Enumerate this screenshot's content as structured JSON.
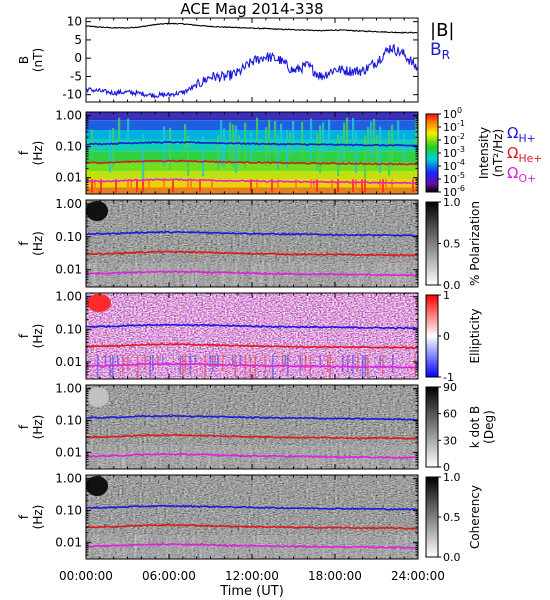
{
  "title": "ACE Mag 2014-338",
  "x_axis": {
    "label": "Time (UT)",
    "ticks": [
      "00:00:00",
      "06:00:00",
      "12:00:00",
      "18:00:00",
      "24:00:00"
    ],
    "range_hours": [
      0,
      24
    ]
  },
  "panels": [
    {
      "id": "bfield",
      "ylabel_line1": "B",
      "ylabel_line2": "(nT)",
      "yticks": [
        "10",
        "5",
        "0",
        "-5",
        "-10"
      ],
      "legend": [
        {
          "label": "|B|",
          "color": "#000000"
        },
        {
          "label": "B",
          "sub": "R",
          "color": "#1a1adc"
        }
      ]
    },
    {
      "id": "intensity",
      "ylabel_line1": "f",
      "ylabel_line2": "(Hz)",
      "yticks": [
        "1.00",
        "0.10",
        "0.01"
      ],
      "colorbar": {
        "type": "rainbow",
        "ticks": [
          {
            "base": "10",
            "exp": "0"
          },
          {
            "base": "10",
            "exp": "-1"
          },
          {
            "base": "10",
            "exp": "-2"
          },
          {
            "base": "10",
            "exp": "-3"
          },
          {
            "base": "10",
            "exp": "-4"
          },
          {
            "base": "10",
            "exp": "-5"
          },
          {
            "base": "10",
            "exp": "-6"
          }
        ],
        "label_line1": "Intensity",
        "label_line2": "(nT²/Hz)"
      },
      "legend": [
        {
          "label": "Ω",
          "sub": "H+",
          "color": "#1a1adc"
        },
        {
          "label": "Ω",
          "sub": "He+",
          "color": "#dc1a1a"
        },
        {
          "label": "Ω",
          "sub": "O+",
          "color": "#e020e0"
        }
      ]
    },
    {
      "id": "polarization",
      "ylabel_line1": "f",
      "ylabel_line2": "(Hz)",
      "yticks": [
        "1.00",
        "0.10",
        "0.01"
      ],
      "colorbar": {
        "type": "gray",
        "ticks": [
          {
            "base": "1.0"
          },
          {
            "base": "0.5"
          },
          {
            "base": "0.0"
          }
        ],
        "label_line1": "% Polarization"
      }
    },
    {
      "id": "ellipticity",
      "ylabel_line1": "f",
      "ylabel_line2": "(Hz)",
      "yticks": [
        "1.00",
        "0.10",
        "0.01"
      ],
      "colorbar": {
        "type": "bwr",
        "ticks": [
          {
            "base": "1"
          },
          {
            "base": "0"
          },
          {
            "base": "-1"
          }
        ],
        "label_line1": "Ellipticity"
      }
    },
    {
      "id": "kdotb",
      "ylabel_line1": "f",
      "ylabel_line2": "(Hz)",
      "yticks": [
        "1.00",
        "0.10",
        "0.01"
      ],
      "colorbar": {
        "type": "gray",
        "ticks": [
          {
            "base": "90"
          },
          {
            "base": "60"
          },
          {
            "base": "30"
          },
          {
            "base": "0"
          }
        ],
        "label_line1": "k dot B",
        "label_line2": "(Deg)"
      }
    },
    {
      "id": "coherency",
      "ylabel_line1": "f",
      "ylabel_line2": "(Hz)",
      "yticks": [
        "1.00",
        "0.10",
        "0.01"
      ],
      "colorbar": {
        "type": "gray",
        "ticks": [
          {
            "base": "1.0"
          },
          {
            "base": "0.5"
          },
          {
            "base": "0.0"
          }
        ],
        "label_line1": "Coherency"
      }
    }
  ],
  "chart_data": {
    "type": "line",
    "title": "ACE Mag 2014-338",
    "xlabel": "Time (UT)",
    "x_unit": "hours UT",
    "b_field": {
      "ylabel": "B (nT)",
      "ylim": [
        -12,
        11
      ],
      "x": [
        0,
        1,
        2,
        3,
        4,
        5,
        6,
        7,
        8,
        9,
        10,
        11,
        12,
        13,
        14,
        15,
        16,
        17,
        18,
        19,
        20,
        21,
        22,
        23,
        24
      ],
      "series": [
        {
          "name": "|B|",
          "color": "#000000",
          "values": [
            8.8,
            8.5,
            8.3,
            8.3,
            8.6,
            9.2,
            9.5,
            9.4,
            9.0,
            8.7,
            8.5,
            8.4,
            8.2,
            8.1,
            7.9,
            7.8,
            7.7,
            7.5,
            7.7,
            7.6,
            7.4,
            7.3,
            7.1,
            7.0,
            7.0
          ]
        },
        {
          "name": "B",
          "sub": "R",
          "color": "#1a1adc",
          "values": [
            -8.5,
            -9.0,
            -9.5,
            -9.3,
            -9.7,
            -10.2,
            -10.0,
            -9.4,
            -7.5,
            -5.0,
            -5.2,
            -4.0,
            -1.0,
            0.5,
            -0.5,
            -3.5,
            -2.0,
            -5.0,
            -3.0,
            -3.5,
            -3.5,
            -1.0,
            3.0,
            1.0,
            -3.0
          ]
        }
      ]
    },
    "frequency_lines": {
      "ylabel": "f (Hz)",
      "yscale": "log",
      "ylim": [
        0.003,
        1.3
      ],
      "x": [
        0,
        2,
        4,
        6,
        8,
        10,
        12,
        14,
        16,
        18,
        20,
        22,
        24
      ],
      "series": [
        {
          "name": "Ω H+",
          "color": "#1a1adc",
          "values": [
            0.12,
            0.125,
            0.135,
            0.138,
            0.135,
            0.13,
            0.125,
            0.12,
            0.118,
            0.115,
            0.113,
            0.11,
            0.108
          ]
        },
        {
          "name": "Ω He+",
          "color": "#dc1a1a",
          "values": [
            0.03,
            0.031,
            0.034,
            0.035,
            0.034,
            0.032,
            0.031,
            0.03,
            0.029,
            0.029,
            0.028,
            0.028,
            0.027
          ]
        },
        {
          "name": "Ω O+",
          "color": "#e020e0",
          "values": [
            0.0075,
            0.0078,
            0.0085,
            0.0087,
            0.0085,
            0.0081,
            0.0078,
            0.0075,
            0.0074,
            0.0072,
            0.0071,
            0.0069,
            0.0068
          ]
        }
      ]
    }
  }
}
